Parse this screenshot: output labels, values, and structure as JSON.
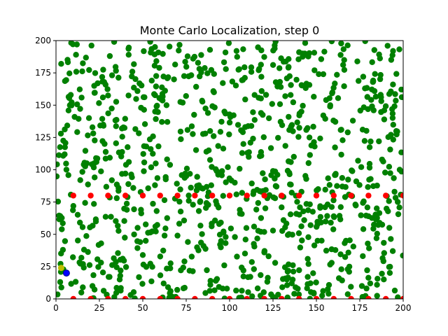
{
  "chart_data": {
    "type": "scatter",
    "title": "Monte Carlo Localization, step 0",
    "xlabel": "",
    "ylabel": "",
    "xlim": [
      0,
      200
    ],
    "ylim": [
      0,
      200
    ],
    "x_ticks": [
      "0",
      "25",
      "50",
      "75",
      "100",
      "125",
      "150",
      "175",
      "200"
    ],
    "y_ticks": [
      "0",
      "25",
      "50",
      "75",
      "100",
      "125",
      "150",
      "175",
      "200"
    ],
    "grid": false,
    "legend": "none",
    "colors": {
      "particles": "#008000",
      "landmarks": "#ff0000",
      "estimate": "#bfbf00",
      "robot": "#0000ff"
    },
    "series": [
      {
        "role": "particles",
        "count": 1000,
        "distribution": "uniform random over [0,200] x [0,200]",
        "points": [
          [
            3,
            182
          ],
          [
            12,
            197
          ],
          [
            22,
            165
          ],
          [
            31,
            188
          ],
          [
            44,
            176
          ],
          [
            57,
            195
          ],
          [
            68,
            170
          ],
          [
            79,
            186
          ],
          [
            91,
            160
          ],
          [
            104,
            192
          ],
          [
            117,
            178
          ],
          [
            129,
            168
          ],
          [
            142,
            190
          ],
          [
            154,
            174
          ],
          [
            166,
            185
          ],
          [
            178,
            163
          ],
          [
            191,
            196
          ],
          [
            8,
            150
          ],
          [
            19,
            140
          ],
          [
            27,
            156
          ],
          [
            38,
            132
          ],
          [
            49,
            148
          ],
          [
            61,
            137
          ],
          [
            73,
            152
          ],
          [
            86,
            128
          ],
          [
            97,
            145
          ],
          [
            109,
            133
          ],
          [
            121,
            158
          ],
          [
            134,
            141
          ],
          [
            146,
            125
          ],
          [
            158,
            150
          ],
          [
            171,
            138
          ],
          [
            183,
            146
          ],
          [
            196,
            130
          ],
          [
            5,
            112
          ],
          [
            16,
            104
          ],
          [
            28,
            120
          ],
          [
            40,
            97
          ],
          [
            52,
            118
          ],
          [
            64,
            108
          ],
          [
            75,
            95
          ],
          [
            88,
            115
          ],
          [
            99,
            102
          ],
          [
            112,
            121
          ],
          [
            125,
            99
          ],
          [
            137,
            110
          ],
          [
            149,
            118
          ],
          [
            161,
            96
          ],
          [
            174,
            107
          ],
          [
            186,
            122
          ],
          [
            198,
            100
          ],
          [
            10,
            72
          ],
          [
            23,
            60
          ],
          [
            35,
            78
          ],
          [
            47,
            55
          ],
          [
            58,
            68
          ],
          [
            70,
            49
          ],
          [
            83,
            75
          ],
          [
            94,
            58
          ],
          [
            106,
            66
          ],
          [
            118,
            52
          ],
          [
            131,
            79
          ],
          [
            143,
            61
          ],
          [
            155,
            71
          ],
          [
            167,
            45
          ],
          [
            180,
            64
          ],
          [
            192,
            55
          ],
          [
            4,
            38
          ],
          [
            15,
            27
          ],
          [
            26,
            43
          ],
          [
            37,
            18
          ],
          [
            50,
            34
          ],
          [
            62,
            12
          ],
          [
            74,
            29
          ],
          [
            85,
            41
          ],
          [
            96,
            8
          ],
          [
            108,
            22
          ],
          [
            120,
            36
          ],
          [
            133,
            15
          ],
          [
            145,
            31
          ],
          [
            157,
            4
          ],
          [
            169,
            25
          ],
          [
            181,
            12
          ],
          [
            194,
            37
          ],
          [
            14,
            92
          ],
          [
            36,
            86
          ],
          [
            57,
            88
          ],
          [
            81,
            84
          ],
          [
            103,
            90
          ],
          [
            127,
            87
          ],
          [
            151,
            85
          ],
          [
            173,
            91
          ],
          [
            195,
            83
          ],
          [
            21,
            10
          ],
          [
            43,
            3
          ],
          [
            66,
            6
          ],
          [
            89,
            14
          ],
          [
            113,
            2
          ],
          [
            138,
            9
          ],
          [
            163,
            16
          ]
        ]
      },
      {
        "role": "landmarks",
        "points": [
          [
            10,
            80
          ],
          [
            20,
            80
          ],
          [
            30,
            80
          ],
          [
            40,
            80
          ],
          [
            50,
            80
          ],
          [
            60,
            80
          ],
          [
            70,
            80
          ],
          [
            80,
            80
          ],
          [
            90,
            80
          ],
          [
            100,
            80
          ],
          [
            110,
            80
          ],
          [
            120,
            80
          ],
          [
            130,
            80
          ],
          [
            140,
            80
          ],
          [
            150,
            80
          ],
          [
            160,
            80
          ],
          [
            170,
            80
          ],
          [
            180,
            80
          ],
          [
            190,
            80
          ],
          [
            200,
            80
          ],
          [
            10,
            0
          ],
          [
            20,
            0
          ],
          [
            30,
            0
          ],
          [
            40,
            0
          ],
          [
            50,
            0
          ],
          [
            60,
            0
          ],
          [
            70,
            0
          ],
          [
            80,
            0
          ],
          [
            90,
            0
          ],
          [
            100,
            0
          ],
          [
            110,
            0
          ],
          [
            120,
            0
          ],
          [
            130,
            0
          ],
          [
            140,
            0
          ],
          [
            150,
            0
          ],
          [
            160,
            0
          ],
          [
            170,
            0
          ],
          [
            180,
            0
          ],
          [
            190,
            0
          ],
          [
            200,
            0
          ]
        ]
      },
      {
        "role": "estimate",
        "points": [
          [
            3,
            24
          ]
        ]
      },
      {
        "role": "robot",
        "points": [
          [
            6,
            20
          ]
        ]
      }
    ]
  }
}
